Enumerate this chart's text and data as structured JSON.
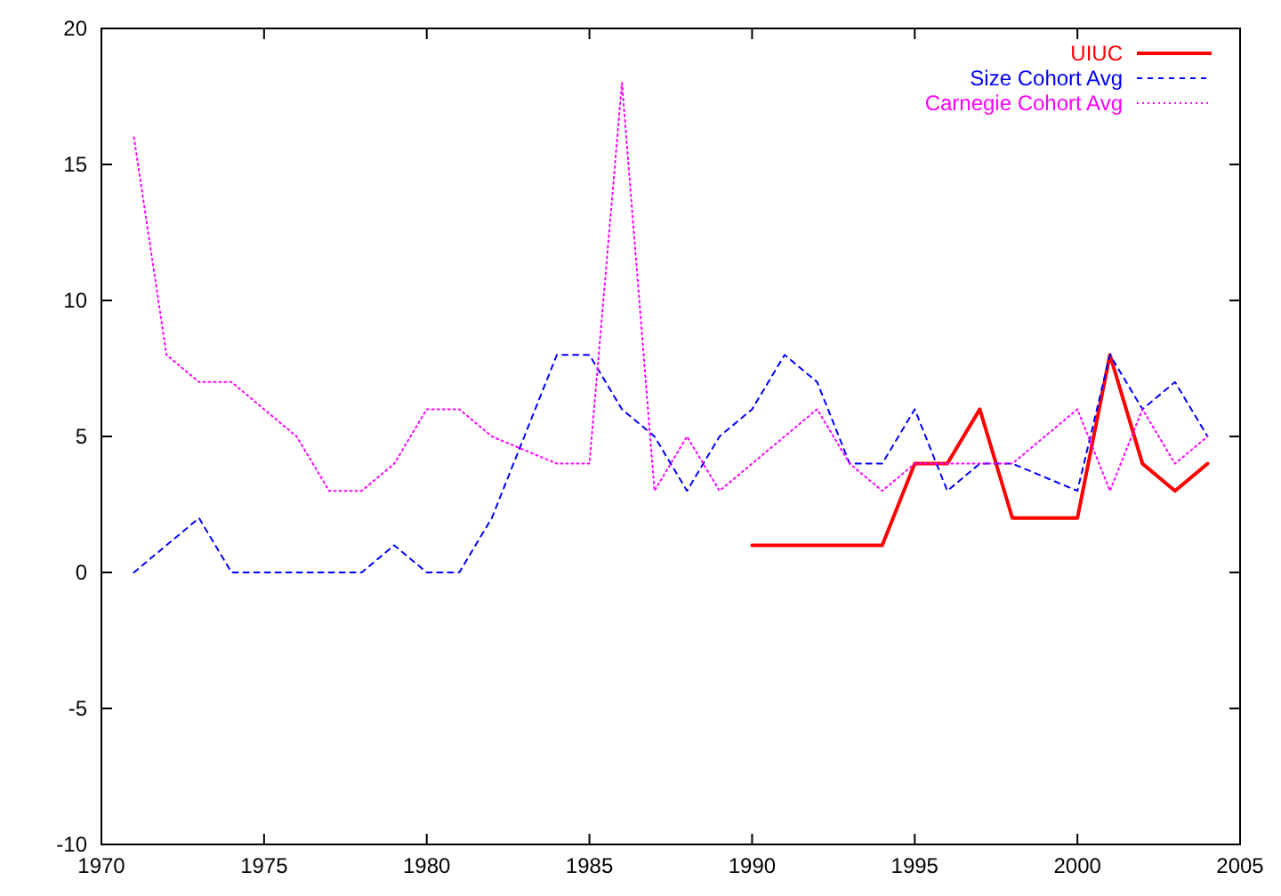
{
  "chart_data": {
    "type": "line",
    "xlim": [
      1970,
      2005
    ],
    "ylim": [
      -10,
      20
    ],
    "xticks": [
      1970,
      1975,
      1980,
      1985,
      1990,
      1995,
      2000,
      2005
    ],
    "yticks": [
      -10,
      -5,
      0,
      5,
      10,
      15,
      20
    ],
    "grid": false,
    "legend": "top right",
    "marker": "none",
    "series": [
      {
        "name": "UIUC",
        "color": "#ff0000",
        "line_style": "solid",
        "x": [
          1990,
          1991,
          1992,
          1993,
          1994,
          1995,
          1996,
          1997,
          1998,
          1999,
          2000,
          2001,
          2002,
          2003,
          2004
        ],
        "values": [
          1,
          1,
          1,
          1,
          1,
          4,
          4,
          6,
          2,
          2,
          2,
          8,
          4,
          3,
          4
        ]
      },
      {
        "name": "Size Cohort Avg",
        "color": "#0000ff",
        "line_style": "dashed",
        "x": [
          1971,
          1972,
          1973,
          1974,
          1975,
          1976,
          1977,
          1978,
          1979,
          1980,
          1981,
          1982,
          1983,
          1984,
          1985,
          1986,
          1987,
          1988,
          1989,
          1990,
          1991,
          1992,
          1993,
          1994,
          1995,
          1996,
          1997,
          1998,
          1999,
          2000,
          2001,
          2002,
          2003,
          2004
        ],
        "values": [
          0,
          1,
          2,
          0,
          0,
          0,
          0,
          0,
          1,
          0,
          0,
          2,
          5,
          8,
          8,
          6,
          5,
          3,
          5,
          6,
          8,
          7,
          4,
          4,
          6,
          3,
          4,
          4,
          3.5,
          3,
          8,
          6,
          7,
          5
        ]
      },
      {
        "name": "Carnegie Cohort Avg",
        "color": "#ff00ff",
        "line_style": "dotted",
        "x": [
          1971,
          1972,
          1973,
          1974,
          1975,
          1976,
          1977,
          1978,
          1979,
          1980,
          1981,
          1982,
          1983,
          1984,
          1985,
          1986,
          1987,
          1988,
          1989,
          1990,
          1991,
          1992,
          1993,
          1994,
          1995,
          1996,
          1997,
          1998,
          1999,
          2000,
          2001,
          2002,
          2003,
          2004
        ],
        "values": [
          16,
          8,
          7,
          7,
          6,
          5,
          3,
          3,
          4,
          6,
          6,
          5,
          4.5,
          4,
          4,
          18,
          3,
          5,
          3,
          4,
          5,
          6,
          4,
          3,
          4,
          4,
          4,
          4,
          5,
          6,
          3,
          6,
          4,
          5
        ]
      }
    ]
  }
}
